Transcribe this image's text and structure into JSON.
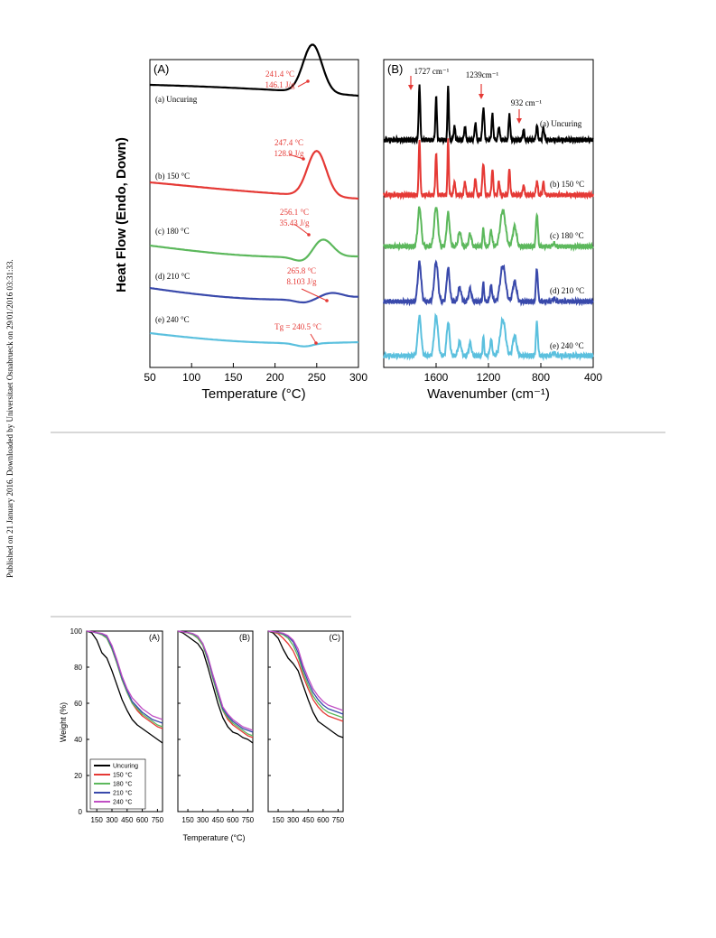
{
  "side_note": "Published on 21 January 2016. Downloaded by Universitaet Osnabrueck on 29/01/2016 03:31:33.",
  "chart_data": [
    {
      "type": "line",
      "panel": "(A)",
      "xlabel": "Temperature (°C)",
      "ylabel": "Heat Flow (Endo, Down)",
      "xlim": [
        50,
        300
      ],
      "xticks": [
        50,
        100,
        150,
        200,
        250,
        300
      ],
      "colors": [
        "#000000",
        "#e53935",
        "#5cb85c",
        "#3949ab",
        "#5bc0de"
      ],
      "series": [
        {
          "name": "(a) Uncuring",
          "baseline": 100,
          "bump": [
            {
              "x": 245,
              "h": 53,
              "w": 16
            }
          ]
        },
        {
          "name": "(b) 150 °C",
          "baseline": 210,
          "bump": [
            {
              "x": 250,
              "h": 50,
              "w": 16
            }
          ]
        },
        {
          "name": "(c) 180 °C",
          "baseline": 282,
          "bump": [
            {
              "x": 257,
              "h": 20,
              "w": 17
            }
          ]
        },
        {
          "name": "(d) 210 °C",
          "baseline": 333,
          "bump": [
            {
              "x": 268,
              "h": 6,
              "w": 18
            }
          ]
        },
        {
          "name": "(e) 240 °C",
          "baseline": 383,
          "bump": []
        }
      ],
      "annotations": [
        {
          "text": [
            "241.4 °C",
            "146.1 J/g"
          ]
        },
        {
          "text": [
            "247.4 °C",
            "128.9 J/g"
          ]
        },
        {
          "text": [
            "256.1 °C",
            "35.43 J/g"
          ]
        },
        {
          "text": [
            "265.8 °C",
            "8.103 J/g"
          ]
        },
        {
          "text": [
            "Tg = 240.5 °C"
          ]
        }
      ]
    },
    {
      "type": "line",
      "panel": "(B)",
      "xlabel": "Wavenumber (cm⁻¹)",
      "xlim": [
        2000,
        400
      ],
      "xticks": [
        1600,
        1200,
        800,
        400
      ],
      "series": [
        {
          "name": "(a) Uncuring"
        },
        {
          "name": "(b) 150 °C"
        },
        {
          "name": "(c) 180 °C"
        },
        {
          "name": "(d) 210 °C"
        },
        {
          "name": "(e) 240 °C"
        }
      ],
      "annotations": [
        "1727 cm⁻¹",
        "1239cm⁻¹",
        "932 cm⁻¹"
      ]
    },
    {
      "type": "line",
      "panels": [
        "(A)",
        "(B)",
        "(C)"
      ],
      "xlabel": "Temperature (°C)",
      "ylabel": "Weight (%)",
      "xlim": [
        50,
        800
      ],
      "ylim": [
        0,
        100
      ],
      "xticks": [
        150,
        300,
        450,
        600,
        750
      ],
      "yticks": [
        0,
        20,
        40,
        60,
        80,
        100
      ],
      "legend": [
        "Uncuring",
        "150 °C",
        "180 °C",
        "210 °C",
        "240 °C"
      ],
      "colors": [
        "#000000",
        "#e53935",
        "#5cb85c",
        "#3949ab",
        "#c04fc4"
      ],
      "series_A": [
        {
          "name": "Uncuring",
          "x": [
            50,
            100,
            150,
            200,
            250,
            300,
            350,
            400,
            450,
            500,
            550,
            600,
            650,
            700,
            750,
            800
          ],
          "y": [
            100,
            99,
            95,
            88,
            85,
            78,
            70,
            62,
            56,
            51,
            48,
            46,
            44,
            42,
            40,
            38
          ]
        },
        {
          "name": "150 °C",
          "x": [
            50,
            100,
            150,
            200,
            250,
            300,
            350,
            400,
            450,
            500,
            550,
            600,
            650,
            700,
            750,
            800
          ],
          "y": [
            100,
            99.6,
            99,
            98,
            96,
            90,
            82,
            73,
            66,
            60,
            56,
            53,
            51,
            49,
            47,
            46
          ]
        },
        {
          "name": "180 °C",
          "x": [
            50,
            100,
            150,
            200,
            250,
            300,
            350,
            400,
            450,
            500,
            550,
            600,
            650,
            700,
            750,
            800
          ],
          "y": [
            100,
            99.6,
            99,
            98,
            96,
            90,
            82,
            73,
            66,
            60,
            57,
            54,
            52,
            50,
            48,
            47
          ]
        },
        {
          "name": "210 °C",
          "x": [
            50,
            100,
            150,
            200,
            250,
            300,
            350,
            400,
            450,
            500,
            550,
            600,
            650,
            700,
            750,
            800
          ],
          "y": [
            100,
            99.6,
            99,
            98.5,
            97,
            91,
            83,
            74,
            67,
            61,
            58,
            55,
            53,
            51,
            50,
            49
          ]
        },
        {
          "name": "240 °C",
          "x": [
            50,
            100,
            150,
            200,
            250,
            300,
            350,
            400,
            450,
            500,
            550,
            600,
            650,
            700,
            750,
            800
          ],
          "y": [
            100,
            99.7,
            99.2,
            98.7,
            97.5,
            92,
            84,
            75,
            68,
            63,
            60,
            57,
            55,
            53,
            52,
            51
          ]
        }
      ],
      "series_B": [
        {
          "name": "Uncuring",
          "x": [
            50,
            100,
            150,
            200,
            250,
            300,
            350,
            400,
            450,
            500,
            550,
            600,
            650,
            700,
            750,
            800
          ],
          "y": [
            100,
            99,
            97,
            95,
            93,
            89,
            80,
            70,
            60,
            52,
            47,
            44,
            43,
            41,
            40,
            38
          ]
        },
        {
          "name": "150 °C",
          "x": [
            50,
            100,
            150,
            200,
            250,
            300,
            350,
            400,
            450,
            500,
            550,
            600,
            650,
            700,
            750,
            800
          ],
          "y": [
            100,
            99.5,
            99,
            98,
            96,
            92,
            84,
            74,
            64,
            56,
            51,
            48,
            46,
            44,
            42,
            41
          ]
        },
        {
          "name": "180 °C",
          "x": [
            50,
            100,
            150,
            200,
            250,
            300,
            350,
            400,
            450,
            500,
            550,
            600,
            650,
            700,
            750,
            800
          ],
          "y": [
            100,
            99.5,
            99,
            98,
            96,
            92,
            84,
            74,
            64,
            56,
            52,
            49,
            47,
            45,
            43,
            42
          ]
        },
        {
          "name": "210 °C",
          "x": [
            50,
            100,
            150,
            200,
            250,
            300,
            350,
            400,
            450,
            500,
            550,
            600,
            650,
            700,
            750,
            800
          ],
          "y": [
            100,
            99.6,
            99.2,
            98.5,
            97,
            93,
            85,
            75,
            66,
            57,
            53,
            50,
            48,
            46,
            45,
            44
          ]
        },
        {
          "name": "240 °C",
          "x": [
            50,
            100,
            150,
            200,
            250,
            300,
            350,
            400,
            450,
            500,
            550,
            600,
            650,
            700,
            750,
            800
          ],
          "y": [
            100,
            99.6,
            99.2,
            98.6,
            97.2,
            93,
            86,
            76,
            67,
            58,
            54,
            51,
            49,
            47,
            46,
            45
          ]
        }
      ],
      "series_C": [
        {
          "name": "Uncuring",
          "x": [
            50,
            100,
            150,
            200,
            250,
            300,
            350,
            400,
            450,
            500,
            550,
            600,
            650,
            700,
            750,
            800
          ],
          "y": [
            100,
            99,
            96,
            90,
            85,
            82,
            78,
            70,
            62,
            55,
            50,
            48,
            46,
            44,
            42,
            41
          ]
        },
        {
          "name": "150 °C",
          "x": [
            50,
            100,
            150,
            200,
            250,
            300,
            350,
            400,
            450,
            500,
            550,
            600,
            650,
            700,
            750,
            800
          ],
          "y": [
            100,
            99.5,
            98.5,
            96,
            93,
            89,
            83,
            75,
            68,
            62,
            58,
            55,
            53,
            52,
            51,
            50
          ]
        },
        {
          "name": "180 °C",
          "x": [
            50,
            100,
            150,
            200,
            250,
            300,
            350,
            400,
            450,
            500,
            550,
            600,
            650,
            700,
            750,
            800
          ],
          "y": [
            100,
            99.6,
            99,
            98,
            96,
            92,
            86,
            77,
            70,
            64,
            60,
            57,
            55,
            54,
            53,
            52
          ]
        },
        {
          "name": "210 °C",
          "x": [
            50,
            100,
            150,
            200,
            250,
            300,
            350,
            400,
            450,
            500,
            550,
            600,
            650,
            700,
            750,
            800
          ],
          "y": [
            100,
            99.7,
            99.3,
            98.5,
            97,
            94,
            88,
            79,
            72,
            66,
            62,
            59,
            57,
            56,
            55,
            54
          ]
        },
        {
          "name": "240 °C",
          "x": [
            50,
            100,
            150,
            200,
            250,
            300,
            350,
            400,
            450,
            500,
            550,
            600,
            650,
            700,
            750,
            800
          ],
          "y": [
            100,
            99.7,
            99.4,
            98.8,
            97.5,
            95,
            90,
            81,
            74,
            68,
            64,
            61,
            59,
            58,
            57,
            56
          ]
        }
      ]
    }
  ]
}
